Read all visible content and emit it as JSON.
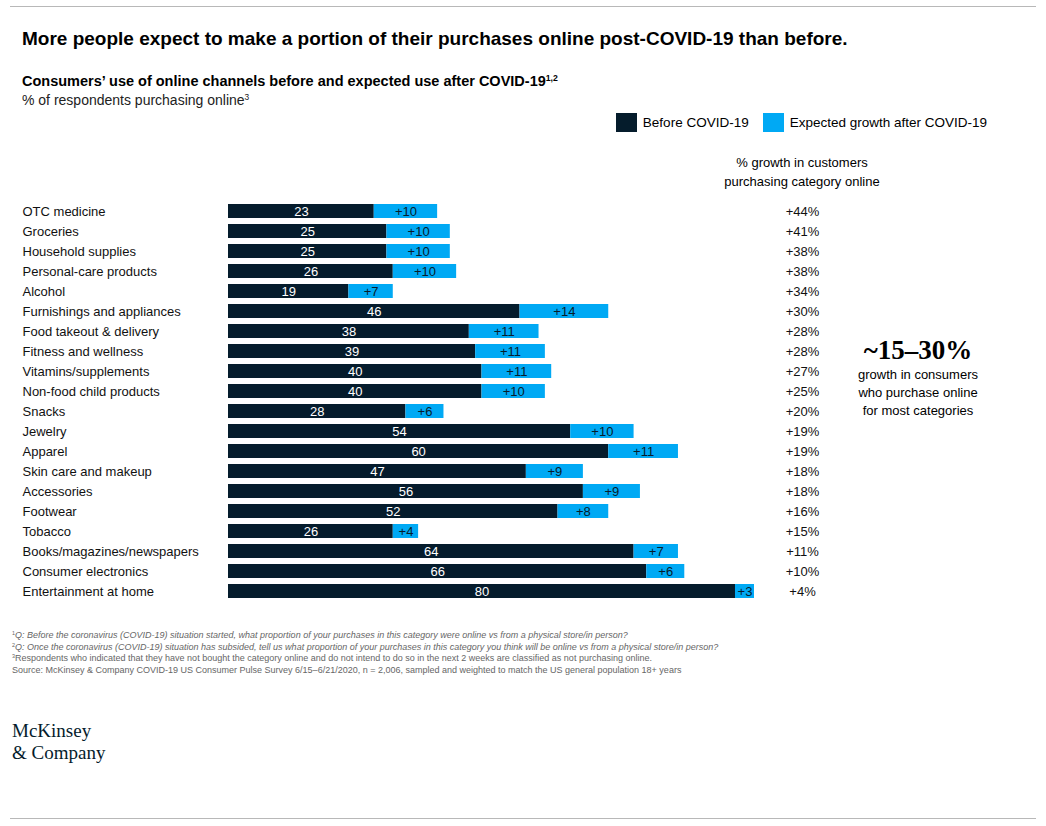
{
  "chart_data": {
    "type": "bar",
    "title": "More people expect to make a portion of their purchases online post-COVID-19 than before.",
    "subtitle": "Consumers’ use of online channels before and expected use after COVID-19",
    "subtitle_refs": "1,2",
    "units": "% of respondents purchasing online",
    "units_refs": "3",
    "orientation": "horizontal",
    "stacked": true,
    "data_labels": true,
    "tick_labels": "y",
    "legend": "top-right",
    "xlim": [
      0,
      83
    ],
    "categories": [
      "OTC medicine",
      "Groceries",
      "Household supplies",
      "Personal-care products",
      "Alcohol",
      "Furnishings and appliances",
      "Food takeout & delivery",
      "Fitness and wellness",
      "Vitamins/supplements",
      "Non-food child products",
      "Snacks",
      "Jewelry",
      "Apparel",
      "Skin care and makeup",
      "Accessories",
      "Footwear",
      "Tobacco",
      "Books/magazines/newspapers",
      "Consumer electronics",
      "Entertainment at home"
    ],
    "series": [
      {
        "name": "Before COVID-19",
        "color": "#051c2c",
        "values": [
          23,
          25,
          25,
          26,
          19,
          46,
          38,
          39,
          40,
          40,
          28,
          54,
          60,
          47,
          56,
          52,
          26,
          64,
          66,
          80
        ]
      },
      {
        "name": "Expected growth after COVID-19",
        "color": "#00a9f4",
        "values": [
          10,
          10,
          10,
          10,
          7,
          14,
          11,
          11,
          11,
          10,
          6,
          10,
          11,
          9,
          9,
          8,
          4,
          7,
          6,
          3
        ],
        "value_labels": [
          "+10",
          "+10",
          "+10",
          "+10",
          "+7",
          "+14",
          "+11",
          "+11",
          "+11",
          "+10",
          "+6",
          "+10",
          "+11",
          "+9",
          "+9",
          "+8",
          "+4",
          "+7",
          "+6",
          "+3"
        ]
      }
    ],
    "growth_column": {
      "title": [
        "% growth in customers",
        "purchasing category online"
      ],
      "values": [
        44,
        41,
        38,
        38,
        34,
        30,
        28,
        28,
        27,
        25,
        20,
        19,
        19,
        18,
        18,
        16,
        15,
        11,
        10,
        4
      ],
      "value_labels": [
        "+44%",
        "+41%",
        "+38%",
        "+38%",
        "+34%",
        "+30%",
        "+28%",
        "+28%",
        "+27%",
        "+25%",
        "+20%",
        "+19%",
        "+19%",
        "+18%",
        "+18%",
        "+16%",
        "+15%",
        "+11%",
        "+10%",
        "+4%"
      ]
    },
    "annotation": {
      "text": "~15–30%",
      "subtext": [
        "growth in consumers",
        "who purchase online",
        "for most categories"
      ]
    },
    "footnotes": [
      {
        "mark": "1",
        "text": "Q: Before the coronavirus (COVID-19) situation started, what proportion of your purchases in this category were online vs from a physical store/in person?"
      },
      {
        "mark": "2",
        "text": "Q: Once the coronavirus (COVID-19) situation has subsided, tell us what proportion of your purchases in this category you think will be online vs from a physical store/in person?"
      },
      {
        "mark": "3",
        "text": "Respondents who indicated that they have not bought the category online and do not intend to do so in the next 2 weeks are classified as not purchasing online."
      },
      {
        "text": "Source: McKinsey & Company COVID-19 US Consumer Pulse Survey 6/15–6/21/2020, n = 2,006, sampled and weighted to match the US general population 18+ years"
      }
    ],
    "logo": [
      "McKinsey",
      "& Company"
    ]
  }
}
